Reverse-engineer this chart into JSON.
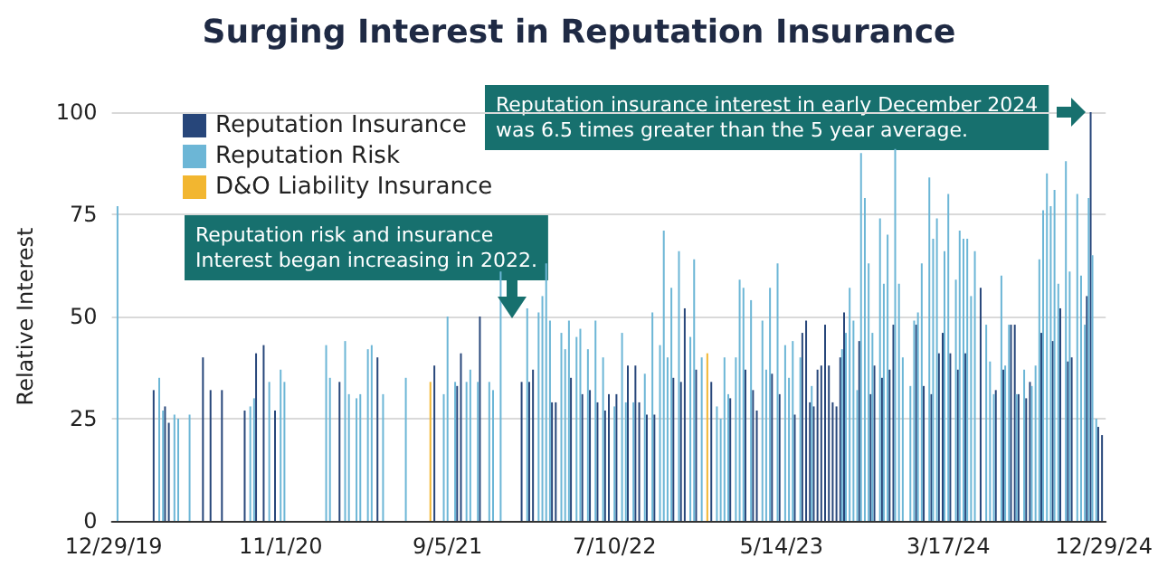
{
  "chart_data": {
    "type": "bar",
    "title": "Surging Interest in Reputation Insurance",
    "ylabel": "Relative Interest",
    "categories": [
      "12/29/19",
      null,
      null,
      null,
      null,
      null,
      null,
      null,
      null,
      null,
      null,
      null,
      null,
      null,
      null,
      null,
      null,
      null,
      null,
      null,
      null,
      null,
      null,
      null,
      null,
      null,
      null,
      null,
      null,
      null,
      null,
      null,
      null,
      null,
      null,
      null,
      null,
      null,
      null,
      null,
      null,
      null,
      null,
      null,
      "11/1/20",
      null,
      null,
      null,
      null,
      null,
      null,
      null,
      null,
      null,
      null,
      null,
      null,
      null,
      null,
      null,
      null,
      null,
      null,
      null,
      null,
      null,
      null,
      null,
      null,
      null,
      null,
      null,
      null,
      null,
      null,
      null,
      null,
      null,
      null,
      null,
      null,
      null,
      null,
      null,
      null,
      null,
      null,
      null,
      "9/5/21",
      null,
      null,
      null,
      null,
      null,
      null,
      null,
      null,
      null,
      null,
      null,
      null,
      null,
      null,
      null,
      null,
      null,
      null,
      null,
      null,
      null,
      null,
      null,
      null,
      null,
      null,
      null,
      null,
      null,
      null,
      null,
      null,
      null,
      null,
      null,
      null,
      null,
      null,
      null,
      null,
      null,
      null,
      null,
      "7/10/22",
      null,
      null,
      null,
      null,
      null,
      null,
      null,
      null,
      null,
      null,
      null,
      null,
      null,
      null,
      null,
      null,
      null,
      null,
      null,
      null,
      null,
      null,
      null,
      null,
      null,
      null,
      null,
      null,
      null,
      null,
      null,
      null,
      null,
      null,
      null,
      null,
      null,
      null,
      null,
      null,
      null,
      null,
      null,
      "5/14/23",
      null,
      null,
      null,
      null,
      null,
      null,
      null,
      null,
      null,
      null,
      null,
      null,
      null,
      null,
      null,
      null,
      null,
      null,
      null,
      null,
      null,
      null,
      null,
      null,
      null,
      null,
      null,
      null,
      null,
      null,
      null,
      null,
      null,
      null,
      null,
      null,
      null,
      null,
      null,
      null,
      null,
      null,
      null,
      "3/17/24",
      null,
      null,
      null,
      null,
      null,
      null,
      null,
      null,
      null,
      null,
      null,
      null,
      null,
      null,
      null,
      null,
      null,
      null,
      null,
      null,
      null,
      null,
      null,
      null,
      null,
      null,
      null,
      null,
      null,
      null,
      null,
      null,
      null,
      null,
      null,
      null,
      null,
      null,
      null,
      null,
      "12/29/24"
    ],
    "series": [
      {
        "name": "Reputation Insurance",
        "color": "#27467a",
        "values": [
          null,
          null,
          null,
          null,
          null,
          null,
          null,
          null,
          null,
          null,
          null,
          32,
          null,
          null,
          28,
          24,
          null,
          null,
          null,
          null,
          null,
          null,
          null,
          null,
          40,
          null,
          32,
          null,
          null,
          32,
          null,
          null,
          null,
          null,
          null,
          27,
          null,
          null,
          41,
          null,
          43,
          null,
          null,
          27,
          null,
          null,
          null,
          null,
          null,
          null,
          null,
          null,
          null,
          null,
          null,
          null,
          null,
          null,
          null,
          null,
          34,
          null,
          null,
          null,
          null,
          null,
          null,
          null,
          null,
          null,
          40,
          null,
          null,
          null,
          null,
          null,
          null,
          null,
          null,
          null,
          null,
          null,
          null,
          null,
          null,
          38,
          null,
          null,
          null,
          null,
          null,
          33,
          41,
          null,
          null,
          null,
          null,
          50,
          null,
          null,
          null,
          null,
          null,
          null,
          null,
          null,
          null,
          null,
          34,
          null,
          34,
          37,
          null,
          null,
          null,
          null,
          29,
          29,
          null,
          null,
          null,
          35,
          null,
          null,
          31,
          null,
          32,
          null,
          29,
          null,
          27,
          31,
          null,
          31,
          null,
          null,
          38,
          null,
          38,
          29,
          null,
          26,
          null,
          26,
          null,
          null,
          null,
          null,
          35,
          null,
          34,
          52,
          null,
          null,
          37,
          null,
          null,
          null,
          34,
          null,
          null,
          null,
          null,
          30,
          null,
          null,
          null,
          37,
          null,
          32,
          27,
          null,
          null,
          null,
          36,
          null,
          31,
          null,
          null,
          null,
          26,
          null,
          46,
          49,
          29,
          28,
          37,
          38,
          48,
          38,
          29,
          28,
          40,
          51,
          null,
          null,
          null,
          44,
          null,
          null,
          31,
          38,
          null,
          35,
          null,
          37,
          48,
          null,
          null,
          null,
          null,
          null,
          48,
          null,
          33,
          null,
          31,
          null,
          41,
          46,
          null,
          41,
          null,
          37,
          null,
          41,
          null,
          null,
          null,
          57,
          null,
          null,
          null,
          32,
          null,
          37,
          null,
          48,
          48,
          31,
          null,
          30,
          34,
          null,
          null,
          46,
          null,
          null,
          44,
          null,
          52,
          null,
          39,
          40,
          null,
          null,
          null,
          55,
          100,
          null,
          23,
          21
        ]
      },
      {
        "name": "Reputation Risk",
        "color": "#6cb6d6",
        "values": [
          null,
          77,
          null,
          null,
          null,
          null,
          null,
          null,
          null,
          null,
          null,
          null,
          35,
          27,
          null,
          null,
          26,
          25,
          null,
          null,
          26,
          null,
          null,
          null,
          null,
          null,
          null,
          null,
          null,
          null,
          null,
          null,
          null,
          null,
          null,
          null,
          28,
          30,
          null,
          null,
          null,
          34,
          null,
          null,
          37,
          34,
          null,
          null,
          null,
          null,
          null,
          null,
          null,
          null,
          null,
          null,
          43,
          35,
          null,
          null,
          null,
          44,
          31,
          null,
          30,
          31,
          null,
          42,
          43,
          null,
          null,
          31,
          null,
          null,
          null,
          null,
          null,
          35,
          null,
          null,
          null,
          null,
          null,
          null,
          null,
          null,
          null,
          31,
          50,
          null,
          34,
          null,
          null,
          34,
          37,
          null,
          34,
          null,
          null,
          34,
          32,
          null,
          61,
          null,
          null,
          null,
          null,
          null,
          null,
          52,
          null,
          null,
          51,
          55,
          63,
          49,
          null,
          null,
          46,
          42,
          49,
          null,
          45,
          47,
          null,
          42,
          null,
          49,
          null,
          40,
          null,
          null,
          28,
          null,
          46,
          29,
          null,
          29,
          null,
          null,
          36,
          null,
          51,
          null,
          43,
          71,
          40,
          57,
          null,
          66,
          null,
          null,
          45,
          64,
          null,
          40,
          null,
          null,
          null,
          28,
          25,
          40,
          31,
          null,
          40,
          59,
          57,
          null,
          54,
          null,
          null,
          49,
          37,
          57,
          null,
          63,
          null,
          43,
          35,
          44,
          null,
          40,
          null,
          null,
          33,
          null,
          null,
          null,
          null,
          null,
          null,
          null,
          42,
          46,
          57,
          49,
          32,
          90,
          79,
          63,
          46,
          null,
          74,
          58,
          70,
          null,
          91,
          58,
          40,
          null,
          33,
          49,
          51,
          63,
          null,
          84,
          69,
          74,
          null,
          66,
          80,
          null,
          59,
          71,
          69,
          69,
          55,
          66,
          null,
          null,
          48,
          39,
          31,
          null,
          60,
          38,
          48,
          null,
          31,
          null,
          37,
          null,
          33,
          38,
          64,
          76,
          85,
          77,
          81,
          58,
          null,
          88,
          61,
          null,
          80,
          60,
          48,
          79,
          65,
          25,
          null,
          null
        ]
      },
      {
        "name": "D&O Liability Insurance",
        "color": "#f2b630",
        "values": [
          null,
          null,
          null,
          null,
          null,
          null,
          null,
          null,
          null,
          null,
          null,
          null,
          null,
          null,
          null,
          null,
          null,
          null,
          null,
          null,
          null,
          null,
          null,
          null,
          null,
          null,
          null,
          null,
          null,
          null,
          null,
          null,
          null,
          null,
          null,
          null,
          null,
          null,
          null,
          null,
          null,
          null,
          null,
          null,
          null,
          null,
          null,
          null,
          null,
          null,
          null,
          null,
          null,
          null,
          null,
          null,
          null,
          null,
          null,
          null,
          null,
          null,
          null,
          null,
          null,
          null,
          null,
          null,
          null,
          null,
          null,
          null,
          null,
          null,
          null,
          null,
          null,
          null,
          null,
          null,
          null,
          null,
          null,
          34,
          null,
          null,
          null,
          null,
          null,
          null,
          null,
          null,
          null,
          null,
          null,
          null,
          null,
          null,
          null,
          null,
          null,
          null,
          null,
          null,
          null,
          null,
          null,
          null,
          null,
          null,
          null,
          null,
          null,
          null,
          null,
          null,
          null,
          null,
          null,
          null,
          null,
          null,
          null,
          null,
          null,
          null,
          null,
          null,
          null,
          null,
          null,
          null,
          null,
          null,
          null,
          null,
          null,
          null,
          null,
          null,
          null,
          null,
          null,
          null,
          null,
          null,
          null,
          null,
          null,
          null,
          null,
          null,
          null,
          null,
          null,
          null,
          41,
          null,
          null,
          null,
          null,
          null,
          null,
          null,
          null,
          null,
          null,
          null,
          null,
          null,
          null,
          null,
          null,
          null,
          null,
          null,
          null,
          null,
          null,
          null,
          null,
          null,
          null,
          null,
          null,
          null,
          null,
          null,
          null,
          null,
          null,
          null,
          null,
          null,
          null,
          null,
          null,
          null,
          null,
          null,
          null,
          null,
          null,
          null,
          null,
          null,
          null,
          null,
          null,
          null,
          null,
          null,
          null,
          null,
          null,
          null,
          null,
          null,
          null,
          null,
          null,
          null,
          null,
          null,
          null,
          null,
          null,
          null,
          null,
          null,
          null,
          null,
          null,
          null,
          null,
          null,
          null,
          null,
          null,
          null,
          null,
          null,
          null,
          null,
          null,
          null,
          null,
          null,
          null,
          null,
          null,
          null,
          null,
          null,
          null,
          null,
          null,
          null,
          null,
          null,
          null,
          null
        ]
      }
    ],
    "ylim": [
      0,
      100
    ],
    "yticks": [
      0,
      25,
      50,
      75,
      100
    ],
    "grid": "y",
    "legend": "top left",
    "annotations": [
      "Reputation risk and insurance\nInterest began increasing in 2022.",
      "Reputation insurance interest in early December 2024\nwas 6.5 times greater than the 5 year average."
    ]
  }
}
